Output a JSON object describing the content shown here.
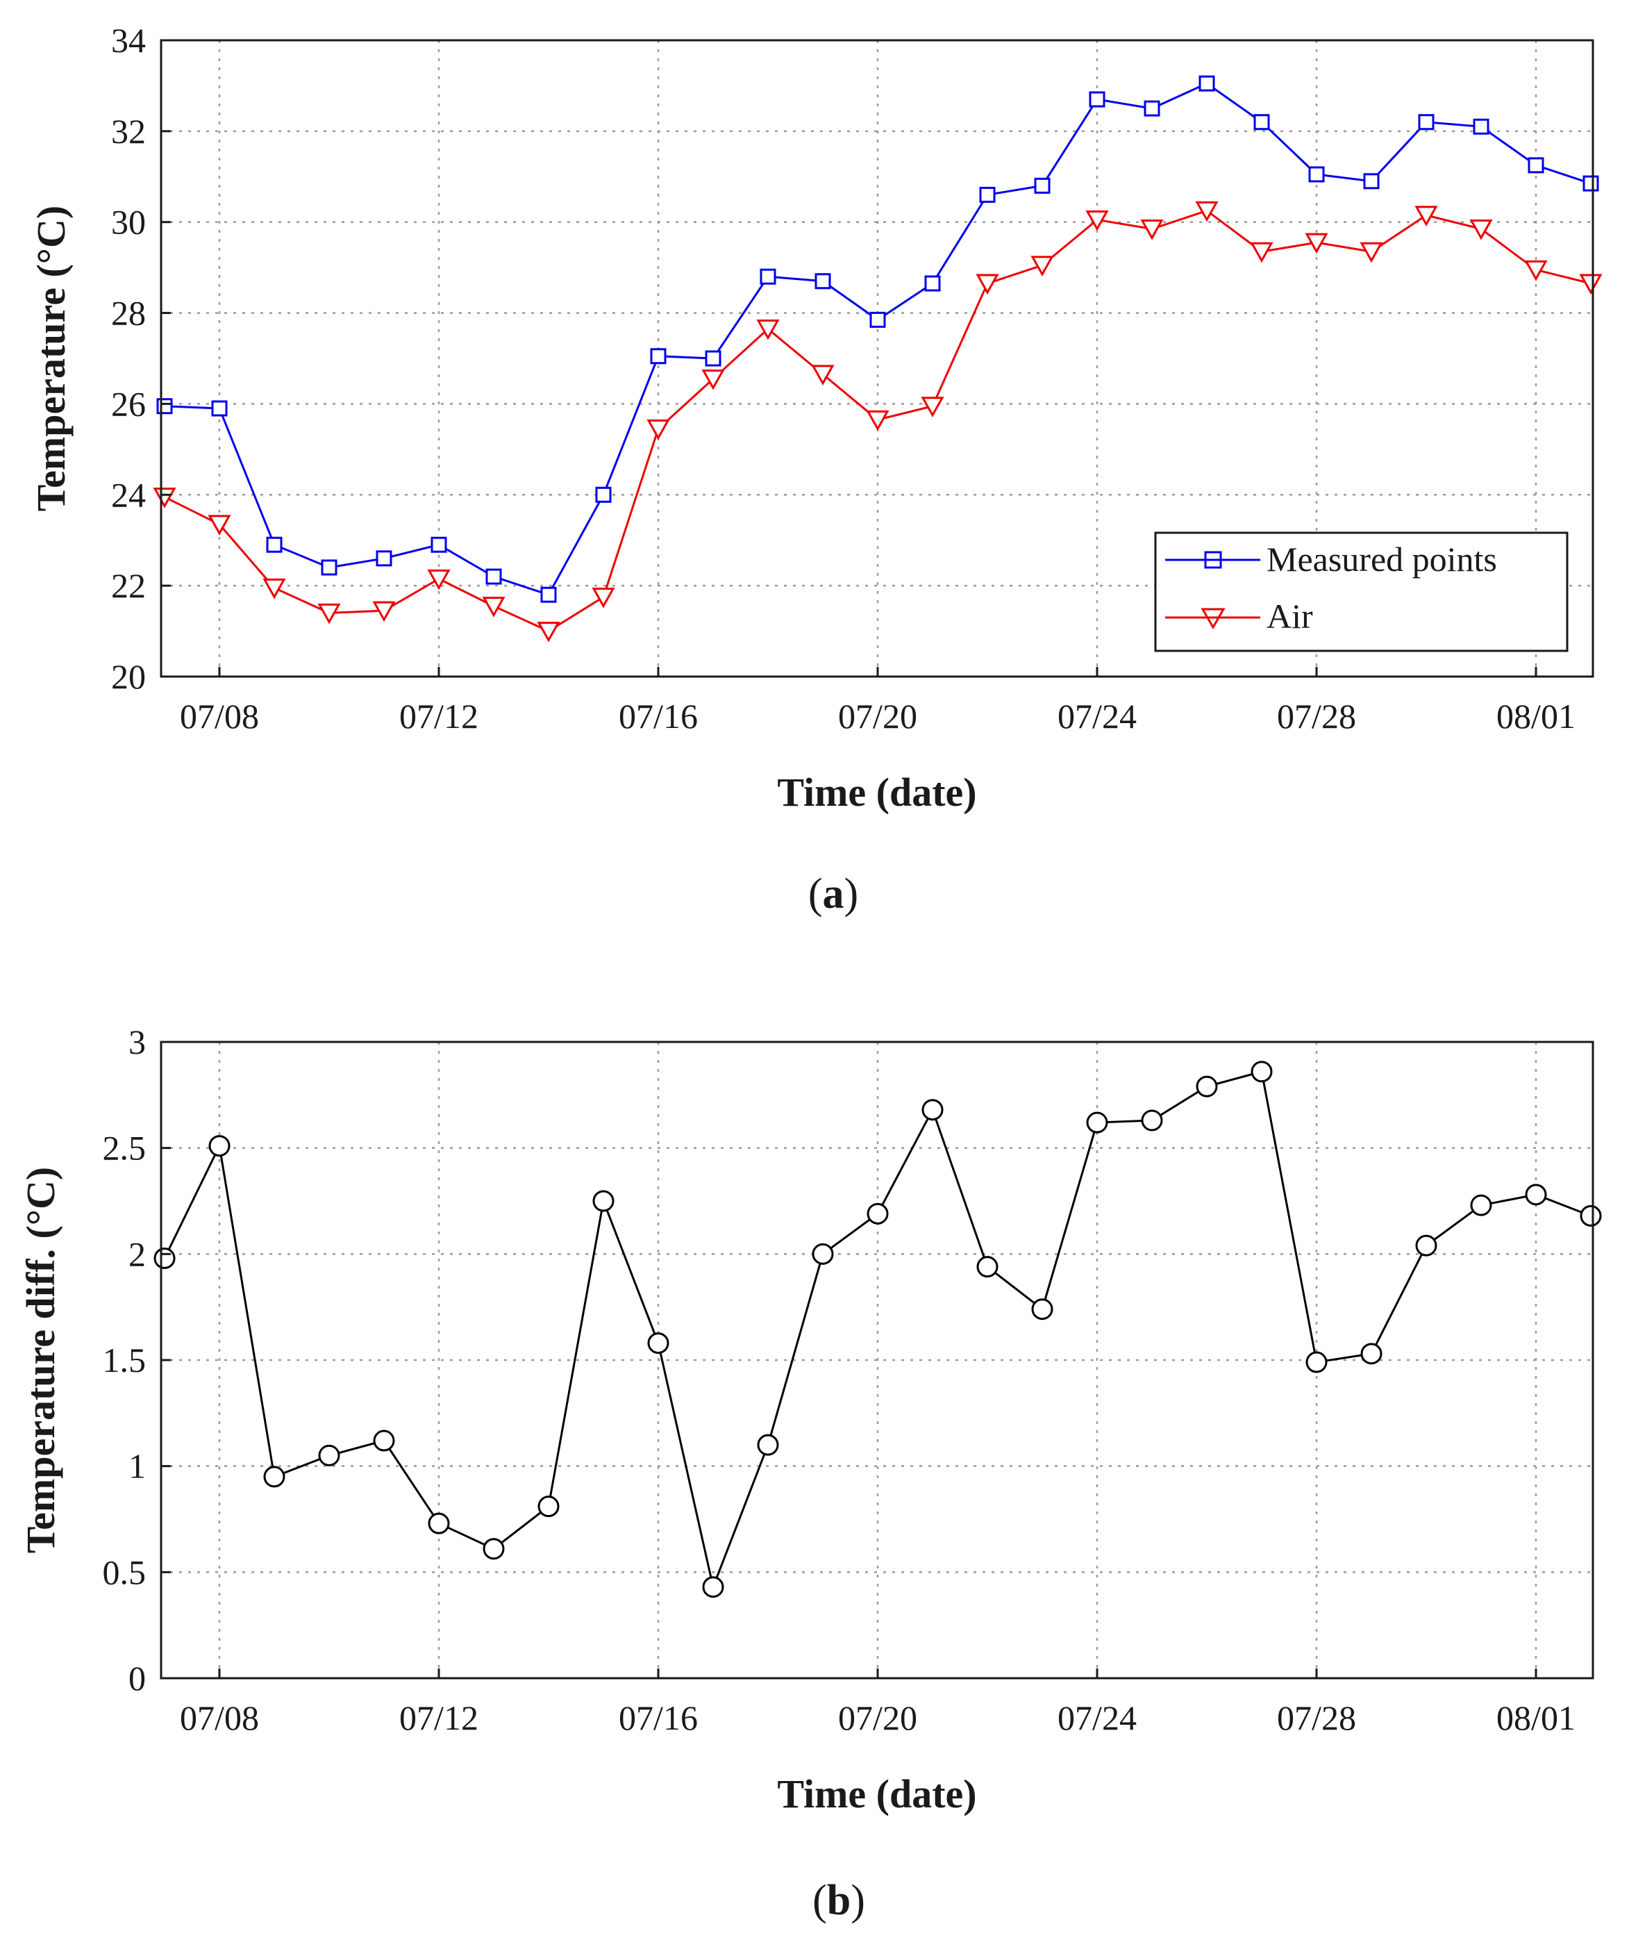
{
  "chart_data": [
    {
      "type": "line",
      "panel_label": "a",
      "xlabel": "Time (date)",
      "ylabel": "Temperature (°C)",
      "x_dates": [
        "07/07",
        "07/08",
        "07/09",
        "07/10",
        "07/11",
        "07/12",
        "07/13",
        "07/14",
        "07/15",
        "07/16",
        "07/17",
        "07/18",
        "07/19",
        "07/20",
        "07/21",
        "07/22",
        "07/23",
        "07/24",
        "07/25",
        "07/26",
        "07/27",
        "07/28",
        "07/29",
        "07/30",
        "07/31",
        "08/01",
        "08/02"
      ],
      "xticks": [
        "07/08",
        "07/12",
        "07/16",
        "07/20",
        "07/24",
        "07/28",
        "08/01"
      ],
      "ylim": [
        20,
        34
      ],
      "yticks": [
        "20",
        "22",
        "24",
        "26",
        "28",
        "30",
        "32",
        "34"
      ],
      "grid": true,
      "legend_position": "lower-right",
      "series": [
        {
          "name": "Measured points",
          "color": "#0000ee",
          "marker": "square",
          "values": [
            25.95,
            25.9,
            22.9,
            22.4,
            22.6,
            22.9,
            22.2,
            21.8,
            24.0,
            27.05,
            27.0,
            28.8,
            28.7,
            27.85,
            28.65,
            30.6,
            30.8,
            32.7,
            32.5,
            33.05,
            32.2,
            31.05,
            30.9,
            32.2,
            32.1,
            31.25,
            30.85
          ]
        },
        {
          "name": "Air",
          "color": "#ee0000",
          "marker": "triangle-down",
          "values": [
            23.95,
            23.35,
            21.95,
            21.4,
            21.45,
            22.15,
            21.55,
            21.0,
            21.75,
            25.45,
            26.55,
            27.65,
            26.65,
            25.65,
            25.95,
            28.65,
            29.05,
            30.05,
            29.85,
            30.25,
            29.35,
            29.55,
            29.35,
            30.15,
            29.85,
            28.95,
            28.65
          ]
        }
      ]
    },
    {
      "type": "line",
      "panel_label": "b",
      "xlabel": "Time (date)",
      "ylabel": "Temperature diff. (°C)",
      "x_dates": [
        "07/07",
        "07/08",
        "07/09",
        "07/10",
        "07/11",
        "07/12",
        "07/13",
        "07/14",
        "07/15",
        "07/16",
        "07/17",
        "07/18",
        "07/19",
        "07/20",
        "07/21",
        "07/22",
        "07/23",
        "07/24",
        "07/25",
        "07/26",
        "07/27",
        "07/28",
        "07/29",
        "07/30",
        "07/31",
        "08/01",
        "08/02"
      ],
      "xticks": [
        "07/08",
        "07/12",
        "07/16",
        "07/20",
        "07/24",
        "07/28",
        "08/01"
      ],
      "ylim": [
        0,
        3
      ],
      "yticks": [
        "0",
        "0.5",
        "1",
        "1.5",
        "2",
        "2.5",
        "3"
      ],
      "grid": true,
      "series": [
        {
          "name": "Temperature diff.",
          "color": "#000000",
          "marker": "circle",
          "values": [
            1.98,
            2.51,
            0.95,
            1.05,
            1.12,
            0.73,
            0.61,
            0.81,
            2.25,
            1.58,
            0.43,
            1.1,
            2.0,
            2.19,
            2.68,
            1.94,
            1.74,
            2.62,
            2.63,
            2.79,
            2.86,
            1.49,
            1.53,
            2.04,
            2.23,
            2.28,
            2.18
          ]
        }
      ]
    }
  ]
}
